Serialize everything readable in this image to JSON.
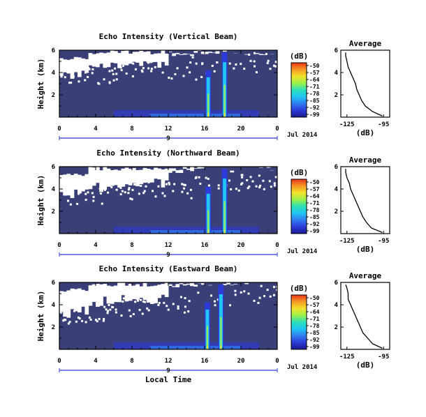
{
  "xaxis": {
    "ticks": [
      "0",
      "4",
      "8",
      "12",
      "16",
      "20",
      "0"
    ],
    "date_day": "9",
    "date_month": "Jul 2014",
    "label": "Local Time"
  },
  "yaxis": {
    "label": "Height (km)",
    "ticks": [
      "2",
      "4",
      "6"
    ]
  },
  "colorbar": {
    "unit": "(dB)",
    "ticks": [
      "-50",
      "-57",
      "-64",
      "-71",
      "-78",
      "-85",
      "-92",
      "-99"
    ],
    "colors": [
      "#1a1a8c",
      "#2c3bd8",
      "#2f7cf0",
      "#22c4f2",
      "#2be0b8",
      "#9bf04a",
      "#f2e22a",
      "#f59a24",
      "#e8341c"
    ]
  },
  "profile": {
    "title": "Average",
    "xlabel": "(dB)",
    "xticks": [
      "-125",
      "-95"
    ],
    "yticks": [
      "2",
      "4",
      "6"
    ]
  },
  "background_color": "#3a3f78",
  "chart_data": [
    {
      "type": "heatmap",
      "title": "Echo Intensity (Vertical Beam)",
      "xlim": [
        0,
        24
      ],
      "ylim": [
        0,
        6
      ],
      "features": {
        "echo_columns_hours": [
          16.4,
          18.2
        ],
        "valid_height_km": {
          "early_hours": 4.2,
          "late_hours": 5.5
        }
      },
      "profile": {
        "heights_km": [
          0.1,
          0.5,
          1.0,
          1.5,
          2.0,
          2.5,
          3.0,
          3.5,
          4.0,
          4.5,
          5.0,
          5.5,
          5.8
        ],
        "values_db": [
          -96,
          -104,
          -110,
          -113,
          -115,
          -117,
          -118,
          -120,
          -122,
          -124,
          -125,
          -126,
          -126
        ]
      }
    },
    {
      "type": "heatmap",
      "title": "Echo Intensity (Northward Beam)",
      "xlim": [
        0,
        24
      ],
      "ylim": [
        0,
        6
      ],
      "features": {
        "echo_columns_hours": [
          16.4,
          18.2
        ],
        "valid_height_km": {
          "early_hours": 3.8,
          "late_hours": 5.2
        }
      },
      "profile": {
        "heights_km": [
          0.1,
          0.5,
          1.0,
          1.5,
          2.0,
          2.5,
          3.0,
          3.5,
          4.0,
          4.5,
          5.0,
          5.5,
          5.8
        ],
        "values_db": [
          -96,
          -105,
          -109,
          -112,
          -114,
          -116,
          -118,
          -120,
          -122,
          -123,
          -125,
          -126,
          -126
        ]
      }
    },
    {
      "type": "heatmap",
      "title": "Echo Intensity (Eastward Beam)",
      "xlim": [
        0,
        24
      ],
      "ylim": [
        0,
        6
      ],
      "features": {
        "echo_columns_hours": [
          16.3,
          17.8
        ],
        "valid_height_km": {
          "early_hours": 3.6,
          "late_hours": 5.8
        }
      },
      "profile": {
        "heights_km": [
          0.1,
          0.5,
          1.0,
          1.5,
          2.0,
          2.5,
          3.0,
          3.5,
          4.0,
          4.5,
          5.0,
          5.5,
          5.8
        ],
        "values_db": [
          -96,
          -104,
          -108,
          -112,
          -114,
          -116,
          -118,
          -120,
          -122,
          -124,
          -124,
          -125,
          -126
        ]
      }
    }
  ]
}
